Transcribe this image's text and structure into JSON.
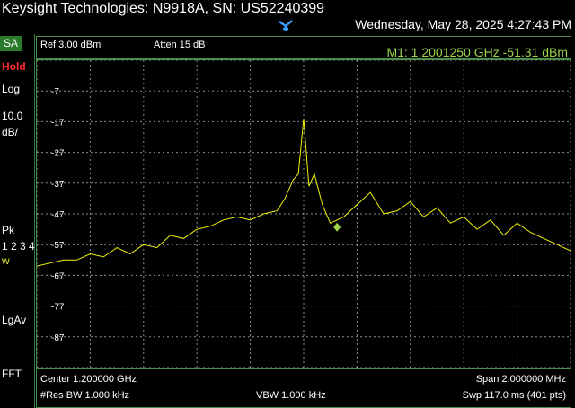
{
  "header": {
    "title": "Keysight Technologies: N9918A, SN: US52240399",
    "datetime": "Wednesday, May 28, 2025 4:27:43 PM"
  },
  "sidebar": {
    "mode": "SA",
    "hold": "Hold",
    "scale_type": "Log",
    "scale_div_value": "10.0",
    "scale_div_unit": "dB/",
    "detector": "Pk",
    "traces": "1 2 3 4",
    "trace_state": "w",
    "average_type": "LgAv",
    "sweep_type": "FFT"
  },
  "settings": {
    "ref_level": "Ref 3.00 dBm",
    "attenuation": "Atten 15 dB",
    "marker_readout": "M1:  1.2001250 GHz -51.31 dBm"
  },
  "footer": {
    "center": "Center 1.200000 GHz",
    "span": "Span 2.000000 MHz",
    "rbw": "#Res BW 1.000 kHz",
    "vbw": "VBW 1.000 kHz",
    "sweep": "Swp 117.0 ms (401 pts)"
  },
  "colors": {
    "trace": "#f2f20a",
    "grid": "#ffffff",
    "frame": "#4b8f4b",
    "marker_text": "#9bd44b",
    "hold": "#ff2a2a"
  },
  "chart_data": {
    "type": "line",
    "xlabel": "",
    "ylabel": "",
    "x_range_GHz": [
      1.199,
      1.201
    ],
    "ylim": [
      -97,
      3
    ],
    "y_ticks": [
      "-7",
      "-17",
      "-27",
      "-37",
      "-47",
      "-57",
      "-67",
      "-77",
      "-87"
    ],
    "grid": true,
    "series": [
      {
        "x_GHz": [
          1.199,
          1.19905,
          1.1991,
          1.19915,
          1.1992,
          1.19925,
          1.1993,
          1.19935,
          1.1994,
          1.19945,
          1.1995,
          1.19955,
          1.1996,
          1.19965,
          1.1997,
          1.19975,
          1.1998,
          1.19985,
          1.1999,
          1.19993,
          1.19996,
          1.19998,
          1.2,
          1.20002,
          1.20004,
          1.20007,
          1.2001,
          1.20015,
          1.2002,
          1.20025,
          1.2003,
          1.20035,
          1.2004,
          1.20045,
          1.2005,
          1.20055,
          1.2006,
          1.20065,
          1.2007,
          1.20075,
          1.2008,
          1.20085,
          1.2009,
          1.20095,
          1.201
        ],
        "y_dBm": [
          -64,
          -63,
          -62,
          -62,
          -60,
          -61,
          -58,
          -60,
          -57,
          -58,
          -54,
          -55,
          -52,
          -51,
          -49,
          -48,
          -49,
          -47,
          -46,
          -42,
          -36,
          -34,
          -16,
          -38,
          -34,
          -44,
          -50,
          -48,
          -44,
          -40,
          -47,
          -46,
          -43,
          -48,
          -45,
          -50,
          -48,
          -52,
          -49,
          -54,
          -50,
          -53,
          -55,
          -57,
          -59
        ]
      }
    ],
    "marker": {
      "name": "M1",
      "x_GHz": 1.200125,
      "y_dBm": -51.31
    }
  }
}
